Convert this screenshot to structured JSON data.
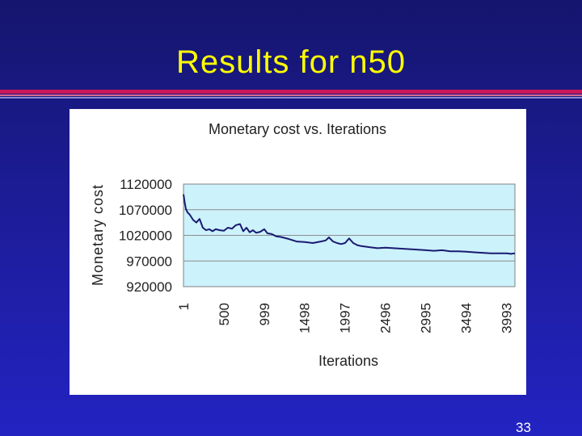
{
  "slide": {
    "title": "Results for n50",
    "page_number": "33"
  },
  "colors": {
    "background": "#1c1c96",
    "title": "#ffff00",
    "plot_area": "#ccf2fc",
    "line": "#1a1a70"
  },
  "chart_data": {
    "type": "line",
    "title": "Monetary cost vs. Iterations",
    "xlabel": "Iterations",
    "ylabel": "Monetary cost",
    "x_range": [
      1,
      4100
    ],
    "ylim": [
      920000,
      1120000
    ],
    "y_ticks": [
      920000,
      970000,
      1020000,
      1070000,
      1120000
    ],
    "x_tick_values": [
      1,
      500,
      999,
      1498,
      1997,
      2496,
      2995,
      3494,
      3993
    ],
    "x_tick_labels": [
      "1",
      "500",
      "999",
      "1498",
      "1997",
      "2496",
      "2995",
      "3494",
      "3993"
    ],
    "grid": "horizontal",
    "legend": "none",
    "series": [
      {
        "x": [
          1,
          15,
          30,
          50,
          80,
          120,
          160,
          200,
          240,
          280,
          320,
          360,
          400,
          450,
          500,
          550,
          600,
          650,
          700,
          740,
          780,
          820,
          860,
          900,
          950,
          1000,
          1040,
          1080,
          1100,
          1150,
          1200,
          1300,
          1400,
          1500,
          1600,
          1700,
          1760,
          1800,
          1850,
          1900,
          1950,
          2000,
          2050,
          2100,
          2150,
          2200,
          2300,
          2400,
          2500,
          2600,
          2700,
          2800,
          2900,
          3000,
          3100,
          3200,
          3300,
          3400,
          3500,
          3600,
          3700,
          3800,
          3900,
          4000,
          4050,
          4100
        ],
        "values": [
          1100000,
          1085000,
          1072000,
          1065000,
          1060000,
          1050000,
          1045000,
          1052000,
          1035000,
          1030000,
          1032000,
          1028000,
          1032000,
          1030000,
          1029000,
          1035000,
          1033000,
          1040000,
          1042000,
          1028000,
          1035000,
          1026000,
          1030000,
          1025000,
          1027000,
          1032000,
          1024000,
          1023000,
          1022000,
          1018000,
          1017000,
          1013000,
          1008000,
          1007000,
          1005000,
          1008000,
          1010000,
          1016000,
          1008000,
          1005000,
          1003000,
          1005000,
          1014000,
          1005000,
          1001000,
          999000,
          997000,
          995000,
          996000,
          995000,
          994000,
          993000,
          992000,
          991000,
          990000,
          991000,
          989000,
          989000,
          988000,
          987000,
          986000,
          985000,
          985000,
          985000,
          984000,
          985000
        ]
      }
    ]
  }
}
